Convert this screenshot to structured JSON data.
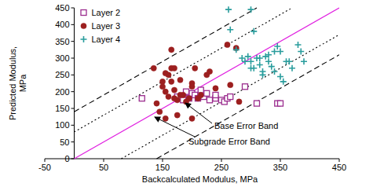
{
  "chart_data": {
    "type": "scatter",
    "x_label": "Backcalculated Modulus, MPa",
    "y_label": "Predicted Modulus,\nMPa",
    "xlim": [
      -50,
      450
    ],
    "ylim": [
      0,
      450
    ],
    "xticks": [
      -50,
      50,
      150,
      250,
      350,
      450
    ],
    "yticks": [
      0,
      50,
      100,
      150,
      200,
      250,
      300,
      350,
      400,
      450
    ],
    "grid": false,
    "legend": "top-left",
    "series": [
      {
        "name": "Layer 2",
        "color": "#9b2d8e",
        "marker": "square",
        "x": [
          115,
          175,
          185,
          190,
          195,
          200,
          205,
          210,
          215,
          220,
          225,
          230,
          240,
          240,
          250,
          255,
          260,
          265,
          290,
          310,
          345,
          350
        ],
        "values": [
          180,
          185,
          175,
          200,
          180,
          195,
          190,
          180,
          205,
          185,
          195,
          175,
          180,
          190,
          175,
          170,
          180,
          185,
          215,
          165,
          165,
          165
        ]
      },
      {
        "name": "Layer 3",
        "color": "#9c1f1f",
        "marker": "circle",
        "x": [
          135,
          140,
          145,
          150,
          150,
          155,
          155,
          155,
          160,
          160,
          165,
          165,
          165,
          170,
          170,
          170,
          175,
          175,
          180,
          180,
          185,
          190,
          195,
          200,
          200,
          200,
          205,
          210,
          215,
          225,
          230,
          240,
          260,
          265,
          275,
          280
        ],
        "values": [
          270,
          165,
          140,
          230,
          215,
          255,
          200,
          120,
          250,
          185,
          325,
          270,
          230,
          270,
          205,
          180,
          175,
          130,
          190,
          235,
          190,
          170,
          180,
          225,
          215,
          120,
          270,
          180,
          190,
          250,
          260,
          210,
          340,
          220,
          330,
          170
        ]
      },
      {
        "name": "Layer 4",
        "color": "#2a9d9d",
        "marker": "plus",
        "x": [
          262,
          265,
          275,
          285,
          290,
          295,
          300,
          300,
          300,
          305,
          305,
          310,
          315,
          315,
          320,
          320,
          325,
          330,
          330,
          335,
          340,
          340,
          345,
          350,
          350,
          355,
          360,
          365,
          370,
          380,
          385,
          390
        ],
        "values": [
          445,
          385,
          325,
          300,
          290,
          305,
          290,
          445,
          270,
          380,
          270,
          300,
          280,
          300,
          250,
          260,
          305,
          290,
          310,
          275,
          260,
          320,
          335,
          320,
          245,
          230,
          290,
          290,
          270,
          340,
          320,
          290
        ]
      }
    ],
    "lines": [
      {
        "color": "#e020e0",
        "line_style": "solid",
        "x": [
          0,
          450
        ],
        "values": [
          0,
          450
        ]
      },
      {
        "color": "#000000",
        "line_style": "dashed",
        "x": [
          0,
          310
        ],
        "values": [
          140,
          450
        ]
      },
      {
        "color": "#000000",
        "line_style": "dashed",
        "x": [
          140,
          450
        ],
        "values": [
          0,
          310
        ]
      },
      {
        "color": "#000000",
        "line_style": "dotted",
        "x": [
          0,
          370
        ],
        "values": [
          80,
          450
        ]
      },
      {
        "color": "#000000",
        "line_style": "dotted",
        "x": [
          80,
          450
        ],
        "values": [
          0,
          370
        ]
      }
    ],
    "annotations": [
      {
        "text": "Base Error Band"
      },
      {
        "text": "Subgrade Error Band"
      }
    ]
  }
}
